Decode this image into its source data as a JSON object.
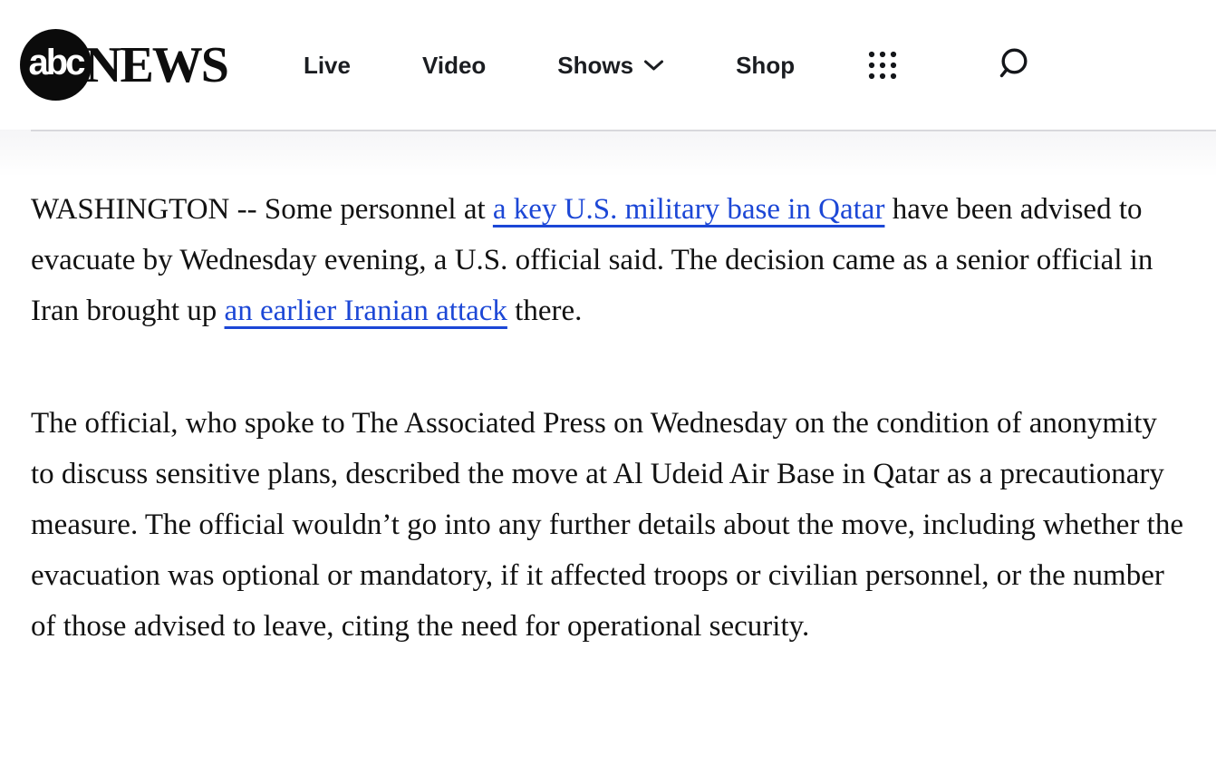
{
  "header": {
    "logo": {
      "abc": "abc",
      "news": "NEWS"
    },
    "nav": [
      {
        "label": "Live",
        "has_dropdown": false
      },
      {
        "label": "Video",
        "has_dropdown": false
      },
      {
        "label": "Shows",
        "has_dropdown": true
      },
      {
        "label": "Shop",
        "has_dropdown": false
      }
    ],
    "icons": [
      {
        "name": "apps-grid-icon"
      },
      {
        "name": "search-icon"
      }
    ]
  },
  "article": {
    "paragraphs": [
      [
        {
          "text": "WASHINGTON -- Some personnel at "
        },
        {
          "text": "a key U.S. military base in Qatar",
          "link": true
        },
        {
          "text": " have been advised to evacuate by Wednesday evening, a U.S. official said. The decision came as a senior official in Iran brought up "
        },
        {
          "text": "an earlier Iranian attack",
          "link": true
        },
        {
          "text": " there."
        }
      ],
      [
        {
          "text": "The official, who spoke to The Associated Press on Wednesday on the condition of anonymity to discuss sensitive plans, described the move at Al Udeid Air Base in Qatar as a precautionary measure. The official wouldn’t go into any further details about the move, including whether the evacuation was optional or mandatory, if it affected troops or civilian personnel, or the number of those advised to leave, citing the need for operational security."
        }
      ]
    ]
  },
  "colors": {
    "link": "#1c47d6",
    "text": "#121212",
    "nav_text": "#1b1d21",
    "divider": "#d8d8dc",
    "logo_bg": "#0b0b0b"
  }
}
